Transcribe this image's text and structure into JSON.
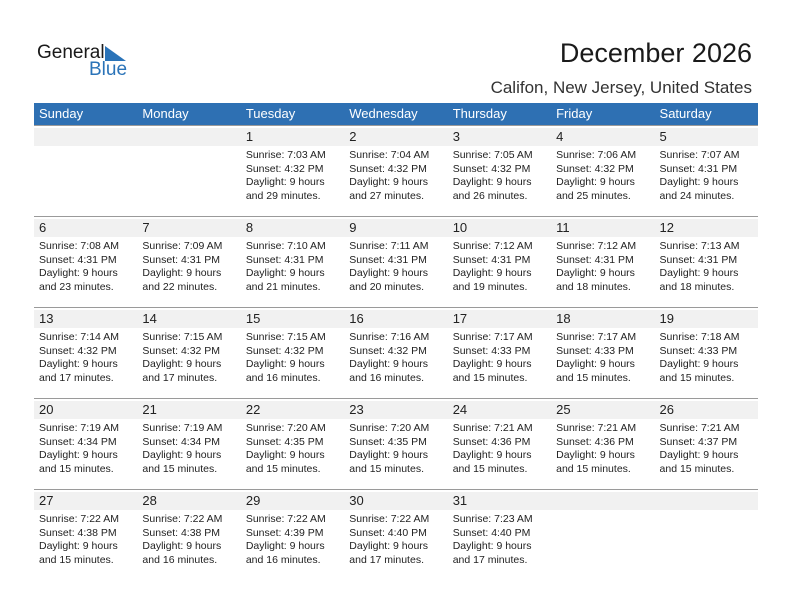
{
  "logo": {
    "line1": "General",
    "line2": "Blue"
  },
  "title": "December 2026",
  "location": "Califon, New Jersey, United States",
  "colors": {
    "header": "#2e70b3",
    "band": "#f1f1f1",
    "logo_blue": "#2a73b8"
  },
  "days": [
    "Sunday",
    "Monday",
    "Tuesday",
    "Wednesday",
    "Thursday",
    "Friday",
    "Saturday"
  ],
  "weeks": [
    [
      null,
      null,
      {
        "day": "1",
        "sunrise": "Sunrise: 7:03 AM",
        "sunset": "Sunset: 4:32 PM",
        "daylight1": "Daylight: 9 hours",
        "daylight2": "and 29 minutes."
      },
      {
        "day": "2",
        "sunrise": "Sunrise: 7:04 AM",
        "sunset": "Sunset: 4:32 PM",
        "daylight1": "Daylight: 9 hours",
        "daylight2": "and 27 minutes."
      },
      {
        "day": "3",
        "sunrise": "Sunrise: 7:05 AM",
        "sunset": "Sunset: 4:32 PM",
        "daylight1": "Daylight: 9 hours",
        "daylight2": "and 26 minutes."
      },
      {
        "day": "4",
        "sunrise": "Sunrise: 7:06 AM",
        "sunset": "Sunset: 4:32 PM",
        "daylight1": "Daylight: 9 hours",
        "daylight2": "and 25 minutes."
      },
      {
        "day": "5",
        "sunrise": "Sunrise: 7:07 AM",
        "sunset": "Sunset: 4:31 PM",
        "daylight1": "Daylight: 9 hours",
        "daylight2": "and 24 minutes."
      }
    ],
    [
      {
        "day": "6",
        "sunrise": "Sunrise: 7:08 AM",
        "sunset": "Sunset: 4:31 PM",
        "daylight1": "Daylight: 9 hours",
        "daylight2": "and 23 minutes."
      },
      {
        "day": "7",
        "sunrise": "Sunrise: 7:09 AM",
        "sunset": "Sunset: 4:31 PM",
        "daylight1": "Daylight: 9 hours",
        "daylight2": "and 22 minutes."
      },
      {
        "day": "8",
        "sunrise": "Sunrise: 7:10 AM",
        "sunset": "Sunset: 4:31 PM",
        "daylight1": "Daylight: 9 hours",
        "daylight2": "and 21 minutes."
      },
      {
        "day": "9",
        "sunrise": "Sunrise: 7:11 AM",
        "sunset": "Sunset: 4:31 PM",
        "daylight1": "Daylight: 9 hours",
        "daylight2": "and 20 minutes."
      },
      {
        "day": "10",
        "sunrise": "Sunrise: 7:12 AM",
        "sunset": "Sunset: 4:31 PM",
        "daylight1": "Daylight: 9 hours",
        "daylight2": "and 19 minutes."
      },
      {
        "day": "11",
        "sunrise": "Sunrise: 7:12 AM",
        "sunset": "Sunset: 4:31 PM",
        "daylight1": "Daylight: 9 hours",
        "daylight2": "and 18 minutes."
      },
      {
        "day": "12",
        "sunrise": "Sunrise: 7:13 AM",
        "sunset": "Sunset: 4:31 PM",
        "daylight1": "Daylight: 9 hours",
        "daylight2": "and 18 minutes."
      }
    ],
    [
      {
        "day": "13",
        "sunrise": "Sunrise: 7:14 AM",
        "sunset": "Sunset: 4:32 PM",
        "daylight1": "Daylight: 9 hours",
        "daylight2": "and 17 minutes."
      },
      {
        "day": "14",
        "sunrise": "Sunrise: 7:15 AM",
        "sunset": "Sunset: 4:32 PM",
        "daylight1": "Daylight: 9 hours",
        "daylight2": "and 17 minutes."
      },
      {
        "day": "15",
        "sunrise": "Sunrise: 7:15 AM",
        "sunset": "Sunset: 4:32 PM",
        "daylight1": "Daylight: 9 hours",
        "daylight2": "and 16 minutes."
      },
      {
        "day": "16",
        "sunrise": "Sunrise: 7:16 AM",
        "sunset": "Sunset: 4:32 PM",
        "daylight1": "Daylight: 9 hours",
        "daylight2": "and 16 minutes."
      },
      {
        "day": "17",
        "sunrise": "Sunrise: 7:17 AM",
        "sunset": "Sunset: 4:33 PM",
        "daylight1": "Daylight: 9 hours",
        "daylight2": "and 15 minutes."
      },
      {
        "day": "18",
        "sunrise": "Sunrise: 7:17 AM",
        "sunset": "Sunset: 4:33 PM",
        "daylight1": "Daylight: 9 hours",
        "daylight2": "and 15 minutes."
      },
      {
        "day": "19",
        "sunrise": "Sunrise: 7:18 AM",
        "sunset": "Sunset: 4:33 PM",
        "daylight1": "Daylight: 9 hours",
        "daylight2": "and 15 minutes."
      }
    ],
    [
      {
        "day": "20",
        "sunrise": "Sunrise: 7:19 AM",
        "sunset": "Sunset: 4:34 PM",
        "daylight1": "Daylight: 9 hours",
        "daylight2": "and 15 minutes."
      },
      {
        "day": "21",
        "sunrise": "Sunrise: 7:19 AM",
        "sunset": "Sunset: 4:34 PM",
        "daylight1": "Daylight: 9 hours",
        "daylight2": "and 15 minutes."
      },
      {
        "day": "22",
        "sunrise": "Sunrise: 7:20 AM",
        "sunset": "Sunset: 4:35 PM",
        "daylight1": "Daylight: 9 hours",
        "daylight2": "and 15 minutes."
      },
      {
        "day": "23",
        "sunrise": "Sunrise: 7:20 AM",
        "sunset": "Sunset: 4:35 PM",
        "daylight1": "Daylight: 9 hours",
        "daylight2": "and 15 minutes."
      },
      {
        "day": "24",
        "sunrise": "Sunrise: 7:21 AM",
        "sunset": "Sunset: 4:36 PM",
        "daylight1": "Daylight: 9 hours",
        "daylight2": "and 15 minutes."
      },
      {
        "day": "25",
        "sunrise": "Sunrise: 7:21 AM",
        "sunset": "Sunset: 4:36 PM",
        "daylight1": "Daylight: 9 hours",
        "daylight2": "and 15 minutes."
      },
      {
        "day": "26",
        "sunrise": "Sunrise: 7:21 AM",
        "sunset": "Sunset: 4:37 PM",
        "daylight1": "Daylight: 9 hours",
        "daylight2": "and 15 minutes."
      }
    ],
    [
      {
        "day": "27",
        "sunrise": "Sunrise: 7:22 AM",
        "sunset": "Sunset: 4:38 PM",
        "daylight1": "Daylight: 9 hours",
        "daylight2": "and 15 minutes."
      },
      {
        "day": "28",
        "sunrise": "Sunrise: 7:22 AM",
        "sunset": "Sunset: 4:38 PM",
        "daylight1": "Daylight: 9 hours",
        "daylight2": "and 16 minutes."
      },
      {
        "day": "29",
        "sunrise": "Sunrise: 7:22 AM",
        "sunset": "Sunset: 4:39 PM",
        "daylight1": "Daylight: 9 hours",
        "daylight2": "and 16 minutes."
      },
      {
        "day": "30",
        "sunrise": "Sunrise: 7:22 AM",
        "sunset": "Sunset: 4:40 PM",
        "daylight1": "Daylight: 9 hours",
        "daylight2": "and 17 minutes."
      },
      {
        "day": "31",
        "sunrise": "Sunrise: 7:23 AM",
        "sunset": "Sunset: 4:40 PM",
        "daylight1": "Daylight: 9 hours",
        "daylight2": "and 17 minutes."
      },
      null,
      null
    ]
  ]
}
